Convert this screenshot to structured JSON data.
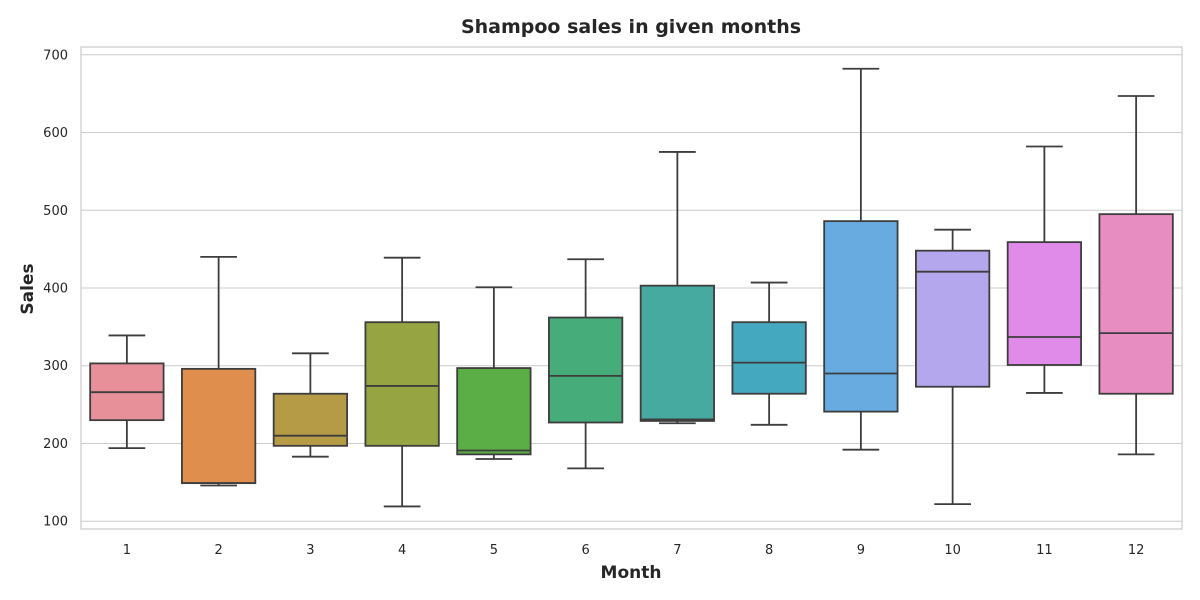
{
  "chart_data": {
    "type": "box",
    "title": "Shampoo sales in given months",
    "xlabel": "Month",
    "ylabel": "Sales",
    "categories": [
      "1",
      "2",
      "3",
      "4",
      "5",
      "6",
      "7",
      "8",
      "9",
      "10",
      "11",
      "12"
    ],
    "ylim": [
      90,
      710
    ],
    "yticks": [
      100,
      200,
      300,
      400,
      500,
      600,
      700
    ],
    "grid": true,
    "boxes": [
      {
        "min": 194,
        "q1": 230,
        "median": 266,
        "q3": 303,
        "max": 339,
        "color": "#e8909a"
      },
      {
        "min": 146,
        "q1": 149,
        "median": 149,
        "q3": 296,
        "max": 440,
        "color": "#e08e4e"
      },
      {
        "min": 183,
        "q1": 197,
        "median": 210,
        "q3": 264,
        "max": 316,
        "color": "#b59b45"
      },
      {
        "min": 119,
        "q1": 197,
        "median": 274,
        "q3": 356,
        "max": 439,
        "color": "#96a442"
      },
      {
        "min": 180,
        "q1": 186,
        "median": 191,
        "q3": 297,
        "max": 401,
        "color": "#5bad45"
      },
      {
        "min": 168,
        "q1": 227,
        "median": 287,
        "q3": 362,
        "max": 437,
        "color": "#45ac7a"
      },
      {
        "min": 226,
        "q1": 229,
        "median": 231,
        "q3": 403,
        "max": 575,
        "color": "#46aaa0"
      },
      {
        "min": 224,
        "q1": 264,
        "median": 304,
        "q3": 356,
        "max": 407,
        "color": "#44a8be"
      },
      {
        "min": 192,
        "q1": 241,
        "median": 290,
        "q3": 486,
        "max": 682,
        "color": "#68abe1"
      },
      {
        "min": 122,
        "q1": 273,
        "median": 421,
        "q3": 448,
        "max": 475,
        "color": "#b5a7ed"
      },
      {
        "min": 265,
        "q1": 301,
        "median": 337,
        "q3": 459,
        "max": 582,
        "color": "#e08ae9"
      },
      {
        "min": 186,
        "q1": 264,
        "median": 342,
        "q3": 495,
        "max": 647,
        "color": "#e88dc2"
      }
    ]
  }
}
